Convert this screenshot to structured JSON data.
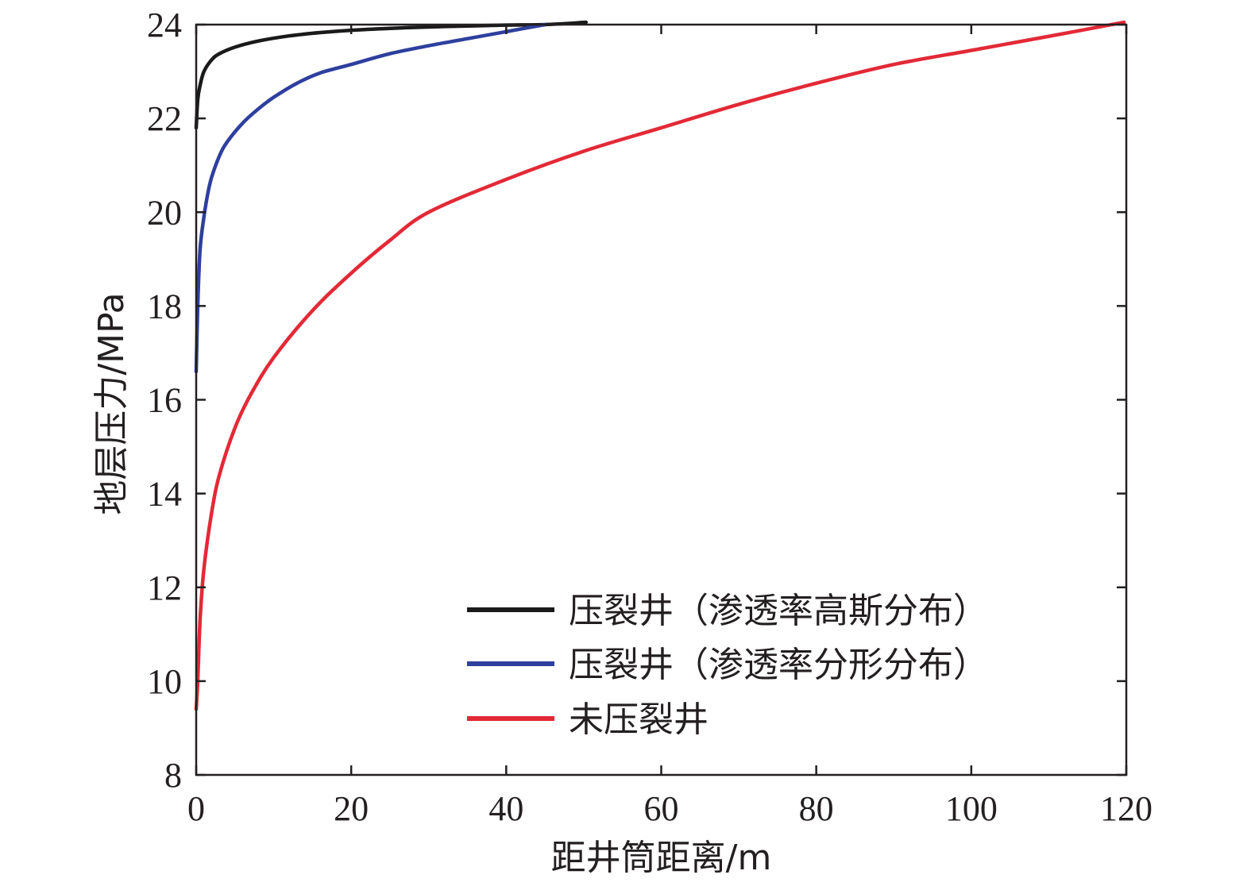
{
  "chart_data": {
    "type": "line",
    "xlabel": "距井筒距离/m",
    "ylabel": "地层压力/MPa",
    "xlim": [
      0,
      120
    ],
    "ylim": [
      8,
      24
    ],
    "xticks": [
      0,
      20,
      40,
      60,
      80,
      100,
      120
    ],
    "yticks": [
      8,
      10,
      12,
      14,
      16,
      18,
      20,
      22,
      24
    ],
    "grid": false,
    "legend_position": "bottom-right",
    "series": [
      {
        "name": "压裂井（渗透率高斯分布）",
        "color": "#1a1a1a",
        "x": [
          0,
          0.2,
          0.5,
          1,
          2,
          3,
          5,
          8,
          12,
          16,
          20,
          25,
          30,
          35,
          40,
          45,
          50.3
        ],
        "y": [
          21.8,
          22.4,
          22.7,
          23.0,
          23.25,
          23.38,
          23.52,
          23.65,
          23.76,
          23.83,
          23.88,
          23.92,
          23.95,
          23.97,
          23.99,
          24.0,
          24.05
        ]
      },
      {
        "name": "压裂井（渗透率分形分布）",
        "color": "#2e3f9e",
        "x": [
          0,
          0.2,
          0.5,
          1,
          1.5,
          2,
          3,
          4,
          6,
          8,
          10,
          13,
          16,
          20,
          25,
          30,
          35,
          40,
          45
        ],
        "y": [
          16.6,
          18.0,
          19.2,
          19.9,
          20.4,
          20.75,
          21.2,
          21.5,
          21.9,
          22.2,
          22.45,
          22.75,
          22.97,
          23.15,
          23.38,
          23.55,
          23.7,
          23.85,
          24.0
        ]
      },
      {
        "name": "未压裂井",
        "color": "#e32936",
        "x": [
          0,
          0.2,
          0.5,
          1,
          2,
          3,
          5,
          7,
          10,
          15,
          20,
          25,
          30,
          40,
          50,
          60,
          70,
          80,
          90,
          100,
          110,
          119.7
        ],
        "y": [
          9.4,
          10.0,
          11.3,
          12.4,
          13.6,
          14.4,
          15.4,
          16.1,
          16.9,
          17.9,
          18.7,
          19.4,
          20.0,
          20.7,
          21.3,
          21.8,
          22.3,
          22.75,
          23.15,
          23.45,
          23.75,
          24.05
        ]
      }
    ]
  }
}
